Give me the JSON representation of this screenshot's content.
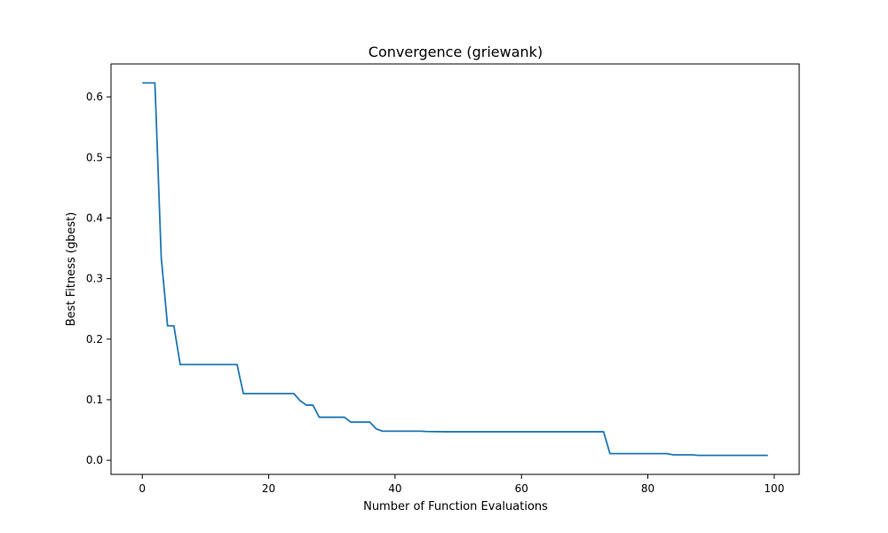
{
  "chart_data": {
    "type": "line",
    "title": "Convergence (griewank)",
    "xlabel": "Number of Function Evaluations",
    "ylabel": "Best Fitness (gbest)",
    "xlim": [
      -4.95,
      103.95
    ],
    "ylim": [
      -0.0233,
      0.6544
    ],
    "xticks": [
      0,
      20,
      40,
      60,
      80,
      100
    ],
    "yticks": [
      0.0,
      0.1,
      0.2,
      0.3,
      0.4,
      0.5,
      0.6
    ],
    "xtick_labels": [
      "0",
      "20",
      "40",
      "60",
      "80",
      "100"
    ],
    "ytick_labels": [
      "0.0",
      "0.1",
      "0.2",
      "0.3",
      "0.4",
      "0.5",
      "0.6"
    ],
    "grid": false,
    "line_color": "#1f77b4",
    "series": [
      {
        "x": [
          0,
          2,
          3,
          4,
          5,
          6,
          15,
          16,
          24,
          25,
          26,
          27,
          28,
          32,
          33,
          36,
          37,
          38,
          44,
          45,
          48,
          52,
          73,
          74,
          83,
          84,
          87,
          88,
          99
        ],
        "y": [
          0.623,
          0.623,
          0.335,
          0.222,
          0.222,
          0.158,
          0.158,
          0.11,
          0.11,
          0.098,
          0.091,
          0.091,
          0.071,
          0.071,
          0.063,
          0.063,
          0.052,
          0.048,
          0.048,
          0.0475,
          0.047,
          0.047,
          0.047,
          0.011,
          0.011,
          0.009,
          0.009,
          0.008,
          0.008
        ]
      }
    ]
  }
}
